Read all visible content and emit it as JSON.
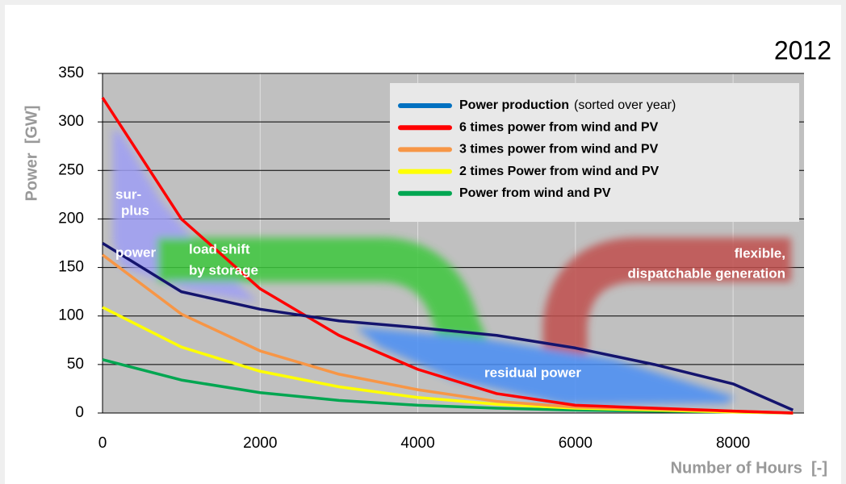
{
  "chart_data": {
    "type": "line",
    "title": "2012",
    "y_label": "Power  [GW]",
    "x_label": "Number of Hours  [-]",
    "x": [
      0,
      1000,
      2000,
      3000,
      4000,
      5000,
      6000,
      7000,
      8000,
      8760
    ],
    "series": [
      {
        "name": "Power production",
        "name_note": "(sorted over year)",
        "color": "#14146e",
        "legend_color": "#0070c0",
        "values": [
          175,
          125,
          107,
          95,
          88,
          80,
          67,
          50,
          30,
          3
        ]
      },
      {
        "name": "6 times power from wind and PV",
        "color": "#ff0000",
        "values": [
          325,
          200,
          128,
          80,
          45,
          20,
          8,
          5,
          2,
          0
        ]
      },
      {
        "name": "3 times power from wind and PV",
        "color": "#f79646",
        "values": [
          163,
          102,
          64,
          40,
          24,
          12,
          6,
          4,
          2,
          0
        ]
      },
      {
        "name": "2 times Power from wind and PV",
        "color": "#ffff00",
        "values": [
          109,
          68,
          43,
          27,
          16,
          9,
          5,
          3,
          1,
          0
        ]
      },
      {
        "name": "Power from wind and PV",
        "color": "#00a651",
        "values": [
          55,
          34,
          21,
          13,
          8,
          5,
          3,
          2,
          1,
          0
        ]
      }
    ],
    "xlim": [
      0,
      8900
    ],
    "ylim": [
      0,
      350
    ],
    "xticks": [
      0,
      2000,
      4000,
      6000,
      8000
    ],
    "yticks": [
      0,
      50,
      100,
      150,
      200,
      250,
      300,
      350
    ],
    "grid": true,
    "legend": "upper right",
    "annotations": [
      "sur-",
      "plus",
      "power",
      "load shift",
      "by storage",
      "flexible,",
      "dispatchable generation",
      "residual power"
    ]
  }
}
